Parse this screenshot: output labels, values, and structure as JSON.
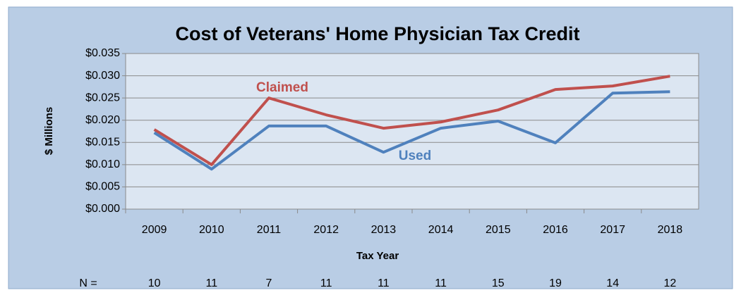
{
  "chart_data": {
    "type": "line",
    "title": "Cost of Veterans' Home Physician Tax Credit",
    "x_label": "Tax Year",
    "y_label": "$ Millions",
    "categories": [
      "2009",
      "2010",
      "2011",
      "2012",
      "2013",
      "2014",
      "2015",
      "2016",
      "2017",
      "2018"
    ],
    "series": [
      {
        "name": "Claimed",
        "color": "#c0504d",
        "values": [
          0.0179,
          0.01,
          0.025,
          0.0212,
          0.0182,
          0.0196,
          0.0223,
          0.0269,
          0.0277,
          0.0299
        ]
      },
      {
        "name": "Used",
        "color": "#4f81bd",
        "values": [
          0.0172,
          0.009,
          0.0187,
          0.0187,
          0.0128,
          0.0182,
          0.0198,
          0.0149,
          0.0261,
          0.0264
        ]
      }
    ],
    "ylim": [
      0,
      0.035
    ],
    "yticks": [
      {
        "value": 0,
        "label": "$0.000"
      },
      {
        "value": 0.005,
        "label": "$0.005"
      },
      {
        "value": 0.01,
        "label": "$0.010"
      },
      {
        "value": 0.015,
        "label": "$0.015"
      },
      {
        "value": 0.02,
        "label": "$0.020"
      },
      {
        "value": 0.025,
        "label": "$0.025"
      },
      {
        "value": 0.03,
        "label": "$0.030"
      },
      {
        "value": 0.035,
        "label": "$0.035"
      }
    ],
    "grid": true,
    "n_label": "N =",
    "n_values": [
      10,
      11,
      7,
      11,
      11,
      11,
      15,
      19,
      14,
      12
    ]
  }
}
